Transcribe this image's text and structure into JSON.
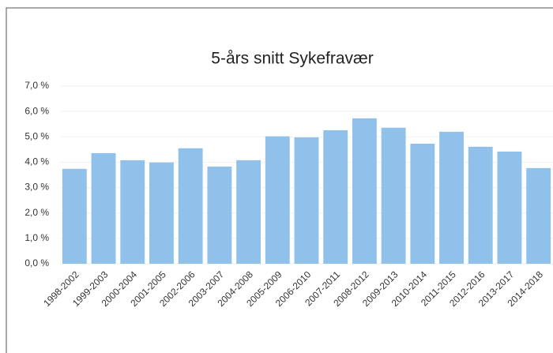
{
  "chart_data": {
    "type": "bar",
    "title": "5-års snitt Sykefravær",
    "categories": [
      "1998-2002",
      "1999-2003",
      "2000-2004",
      "2001-2005",
      "2002-2006",
      "2003-2007",
      "2004-2008",
      "2005-2009",
      "2006-2010",
      "2007-2011",
      "2008-2012",
      "2009-2013",
      "2010-2014",
      "2011-2015",
      "2012-2016",
      "2013-2017",
      "2014-2018"
    ],
    "values": [
      3.74,
      4.36,
      4.08,
      3.99,
      4.55,
      3.83,
      4.08,
      5.02,
      4.98,
      5.26,
      5.73,
      5.36,
      4.73,
      5.2,
      4.61,
      4.42,
      3.77
    ],
    "color": "#8fc1ea",
    "ylim": [
      0,
      7
    ],
    "yticks": [
      {
        "value": 0,
        "label": "0,0 %"
      },
      {
        "value": 1,
        "label": "1,0 %"
      },
      {
        "value": 2,
        "label": "2,0 %"
      },
      {
        "value": 3,
        "label": "3,0 %"
      },
      {
        "value": 4,
        "label": "4,0 %"
      },
      {
        "value": 5,
        "label": "5,0 %"
      },
      {
        "value": 6,
        "label": "6,0 %"
      },
      {
        "value": 7,
        "label": "7,0 %"
      }
    ],
    "grid": true
  }
}
